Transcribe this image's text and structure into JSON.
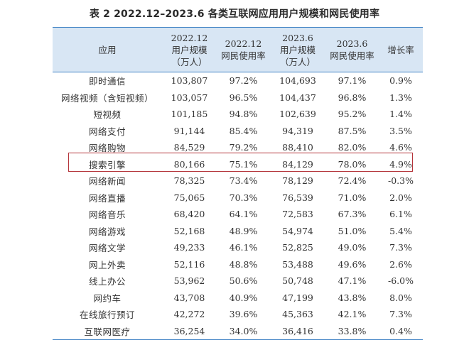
{
  "title": "表 2  2022.12–2023.6 各类互联网应用用户规模和网民使用率",
  "headers": [
    [
      "应用"
    ],
    [
      "2022.12",
      "用户规模",
      "（万人）"
    ],
    [
      "2022.12",
      "网民使用率"
    ],
    [
      "2023.6",
      "用户规模",
      "（万人）"
    ],
    [
      "2023.6",
      "网民使用率"
    ],
    [
      "增长率"
    ]
  ],
  "highlight_color": "#b4343a",
  "accent_color": "#3f82c4",
  "header_bg": "#d8e6f4",
  "highlighted_row": "搜索引擎",
  "rows": [
    {
      "app": "即时通信",
      "users_2212": "103,807",
      "rate_2212": "97.2%",
      "users_2306": "104,693",
      "rate_2306": "97.1%",
      "growth": "0.9%"
    },
    {
      "app": "网络视频（含短视频）",
      "users_2212": "103,057",
      "rate_2212": "96.5%",
      "users_2306": "104,437",
      "rate_2306": "96.8%",
      "growth": "1.3%"
    },
    {
      "app": "短视频",
      "users_2212": "101,185",
      "rate_2212": "94.8%",
      "users_2306": "102,639",
      "rate_2306": "95.2%",
      "growth": "1.4%"
    },
    {
      "app": "网络支付",
      "users_2212": "91,144",
      "rate_2212": "85.4%",
      "users_2306": "94,319",
      "rate_2306": "87.5%",
      "growth": "3.5%"
    },
    {
      "app": "网络购物",
      "users_2212": "84,529",
      "rate_2212": "79.2%",
      "users_2306": "88,410",
      "rate_2306": "82.0%",
      "growth": "4.6%"
    },
    {
      "app": "搜索引擎",
      "users_2212": "80,166",
      "rate_2212": "75.1%",
      "users_2306": "84,129",
      "rate_2306": "78.0%",
      "growth": "4.9%"
    },
    {
      "app": "网络新闻",
      "users_2212": "78,325",
      "rate_2212": "73.4%",
      "users_2306": "78,129",
      "rate_2306": "72.4%",
      "growth": "-0.3%"
    },
    {
      "app": "网络直播",
      "users_2212": "75,065",
      "rate_2212": "70.3%",
      "users_2306": "76,539",
      "rate_2306": "71.0%",
      "growth": "2.0%"
    },
    {
      "app": "网络音乐",
      "users_2212": "68,420",
      "rate_2212": "64.1%",
      "users_2306": "72,583",
      "rate_2306": "67.3%",
      "growth": "6.1%"
    },
    {
      "app": "网络游戏",
      "users_2212": "52,168",
      "rate_2212": "48.9%",
      "users_2306": "54,974",
      "rate_2306": "51.0%",
      "growth": "5.4%"
    },
    {
      "app": "网络文学",
      "users_2212": "49,233",
      "rate_2212": "46.1%",
      "users_2306": "52,825",
      "rate_2306": "49.0%",
      "growth": "7.3%"
    },
    {
      "app": "网上外卖",
      "users_2212": "52,116",
      "rate_2212": "48.8%",
      "users_2306": "53,488",
      "rate_2306": "49.6%",
      "growth": "2.6%"
    },
    {
      "app": "线上办公",
      "users_2212": "53,962",
      "rate_2212": "50.6%",
      "users_2306": "50,748",
      "rate_2306": "47.1%",
      "growth": "-6.0%"
    },
    {
      "app": "网约车",
      "users_2212": "43,708",
      "rate_2212": "40.9%",
      "users_2306": "47,199",
      "rate_2306": "43.8%",
      "growth": "8.0%"
    },
    {
      "app": "在线旅行预订",
      "users_2212": "42,272",
      "rate_2212": "39.6%",
      "users_2306": "45,363",
      "rate_2306": "42.1%",
      "growth": "7.3%"
    },
    {
      "app": "互联网医疗",
      "users_2212": "36,254",
      "rate_2212": "34.0%",
      "users_2306": "36,416",
      "rate_2306": "33.8%",
      "growth": "0.4%"
    }
  ]
}
